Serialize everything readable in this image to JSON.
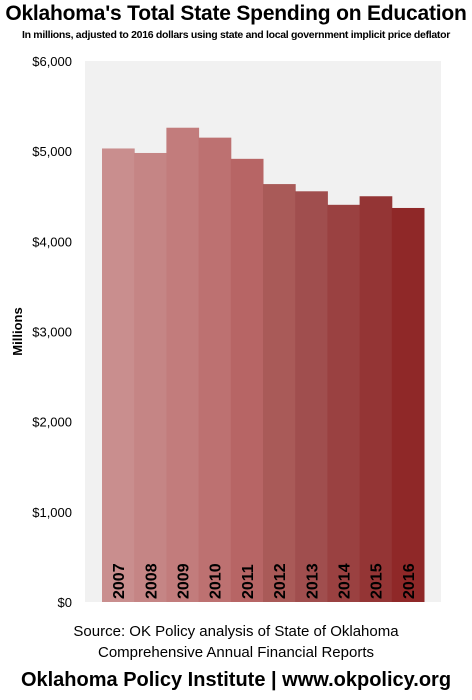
{
  "header": {
    "title": "Oklahoma's Total State Spending on Education",
    "subtitle": "In millions, adjusted to 2016 dollars using state and local government implicit price deflator"
  },
  "chart_data": {
    "type": "bar",
    "title": "Oklahoma's Total State Spending on Education",
    "subtitle": "In millions, adjusted to 2016 dollars using state and local government implicit price deflator",
    "xlabel": "",
    "ylabel": "Millions",
    "categories": [
      "2007",
      "2008",
      "2009",
      "2010",
      "2011",
      "2012",
      "2013",
      "2014",
      "2015",
      "2016"
    ],
    "values": [
      5030,
      4980,
      5260,
      5150,
      4915,
      4635,
      4555,
      4405,
      4500,
      4370
    ],
    "ylim": [
      0,
      6000
    ],
    "yticks": [
      0,
      1000,
      2000,
      3000,
      4000,
      5000,
      6000
    ],
    "ytick_labels": [
      "$0",
      "$1,000",
      "$2,000",
      "$3,000",
      "$4,000",
      "$5,000",
      "$6,000"
    ],
    "colors": [
      "#c98e8e",
      "#c58585",
      "#c27c7c",
      "#bd7171",
      "#b76565",
      "#a95a58",
      "#a04e4e",
      "#9a4141",
      "#943535",
      "#8f2828"
    ],
    "plot_background": "#f1f1f1",
    "grid": false,
    "legend": "none"
  },
  "source": {
    "line1": "Source: OK Policy analysis of State of  Oklahoma",
    "line2": "Comprehensive Annual Financial Reports"
  },
  "footer": {
    "text": "Oklahoma Policy Institute | www.okpolicy.org"
  }
}
